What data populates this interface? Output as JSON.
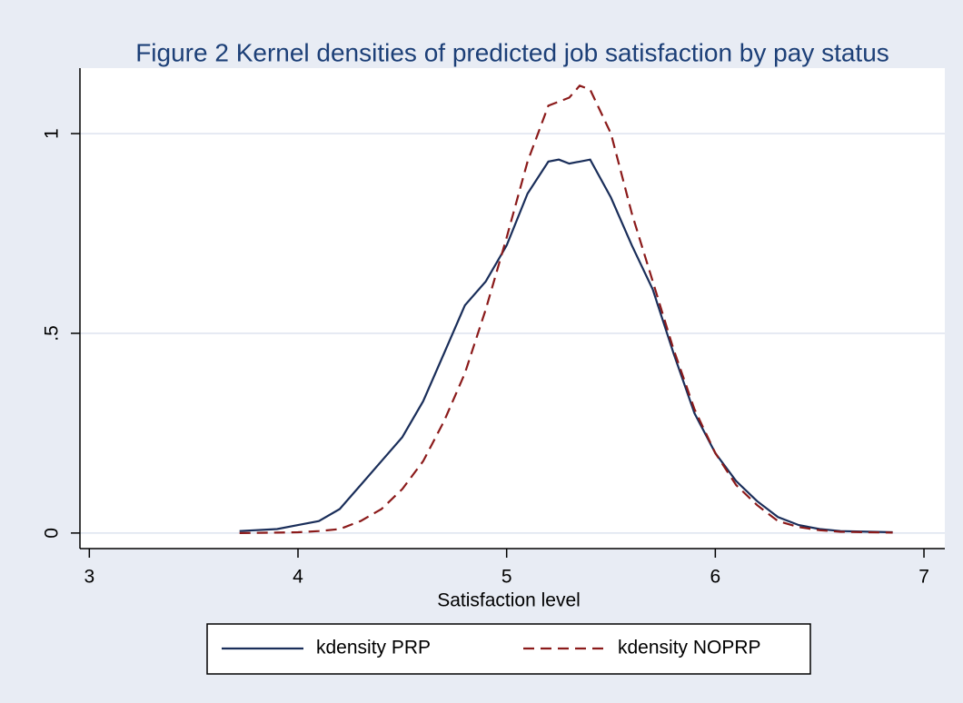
{
  "chart_data": {
    "type": "line",
    "title": "Figure 2 Kernel densities of predicted job satisfaction by pay status",
    "x_label": "Satisfaction level",
    "x": [
      3.72,
      3.9,
      4.0,
      4.1,
      4.2,
      4.3,
      4.4,
      4.5,
      4.6,
      4.7,
      4.8,
      4.9,
      5.0,
      5.1,
      5.2,
      5.25,
      5.3,
      5.35,
      5.4,
      5.5,
      5.6,
      5.7,
      5.8,
      5.9,
      6.0,
      6.1,
      6.2,
      6.3,
      6.4,
      6.5,
      6.6,
      6.85
    ],
    "series": [
      {
        "name": "kdensity PRP",
        "color": "#1a2e5a",
        "dash": false,
        "values": [
          0.005,
          0.01,
          0.02,
          0.03,
          0.06,
          0.12,
          0.18,
          0.24,
          0.33,
          0.45,
          0.57,
          0.63,
          0.72,
          0.85,
          0.93,
          0.935,
          0.925,
          0.93,
          0.935,
          0.84,
          0.72,
          0.61,
          0.45,
          0.3,
          0.2,
          0.13,
          0.08,
          0.04,
          0.02,
          0.01,
          0.005,
          0.002
        ]
      },
      {
        "name": "kdensity NOPRP",
        "color": "#8b1a1a",
        "dash": true,
        "values": [
          0,
          0.001,
          0.002,
          0.005,
          0.01,
          0.03,
          0.06,
          0.11,
          0.18,
          0.28,
          0.4,
          0.56,
          0.74,
          0.93,
          1.07,
          1.08,
          1.09,
          1.12,
          1.11,
          1.0,
          0.8,
          0.63,
          0.46,
          0.31,
          0.2,
          0.12,
          0.07,
          0.03,
          0.015,
          0.007,
          0.003,
          0.001
        ]
      }
    ],
    "xlim": [
      2.955,
      7.1
    ],
    "xticks": [
      3,
      4,
      5,
      6,
      7
    ],
    "ylim": [
      -0.039,
      1.164
    ],
    "yticks": [
      0,
      {
        "value": 0.5,
        "label": ".5"
      },
      1
    ],
    "grid": true,
    "legend": "bottom"
  }
}
